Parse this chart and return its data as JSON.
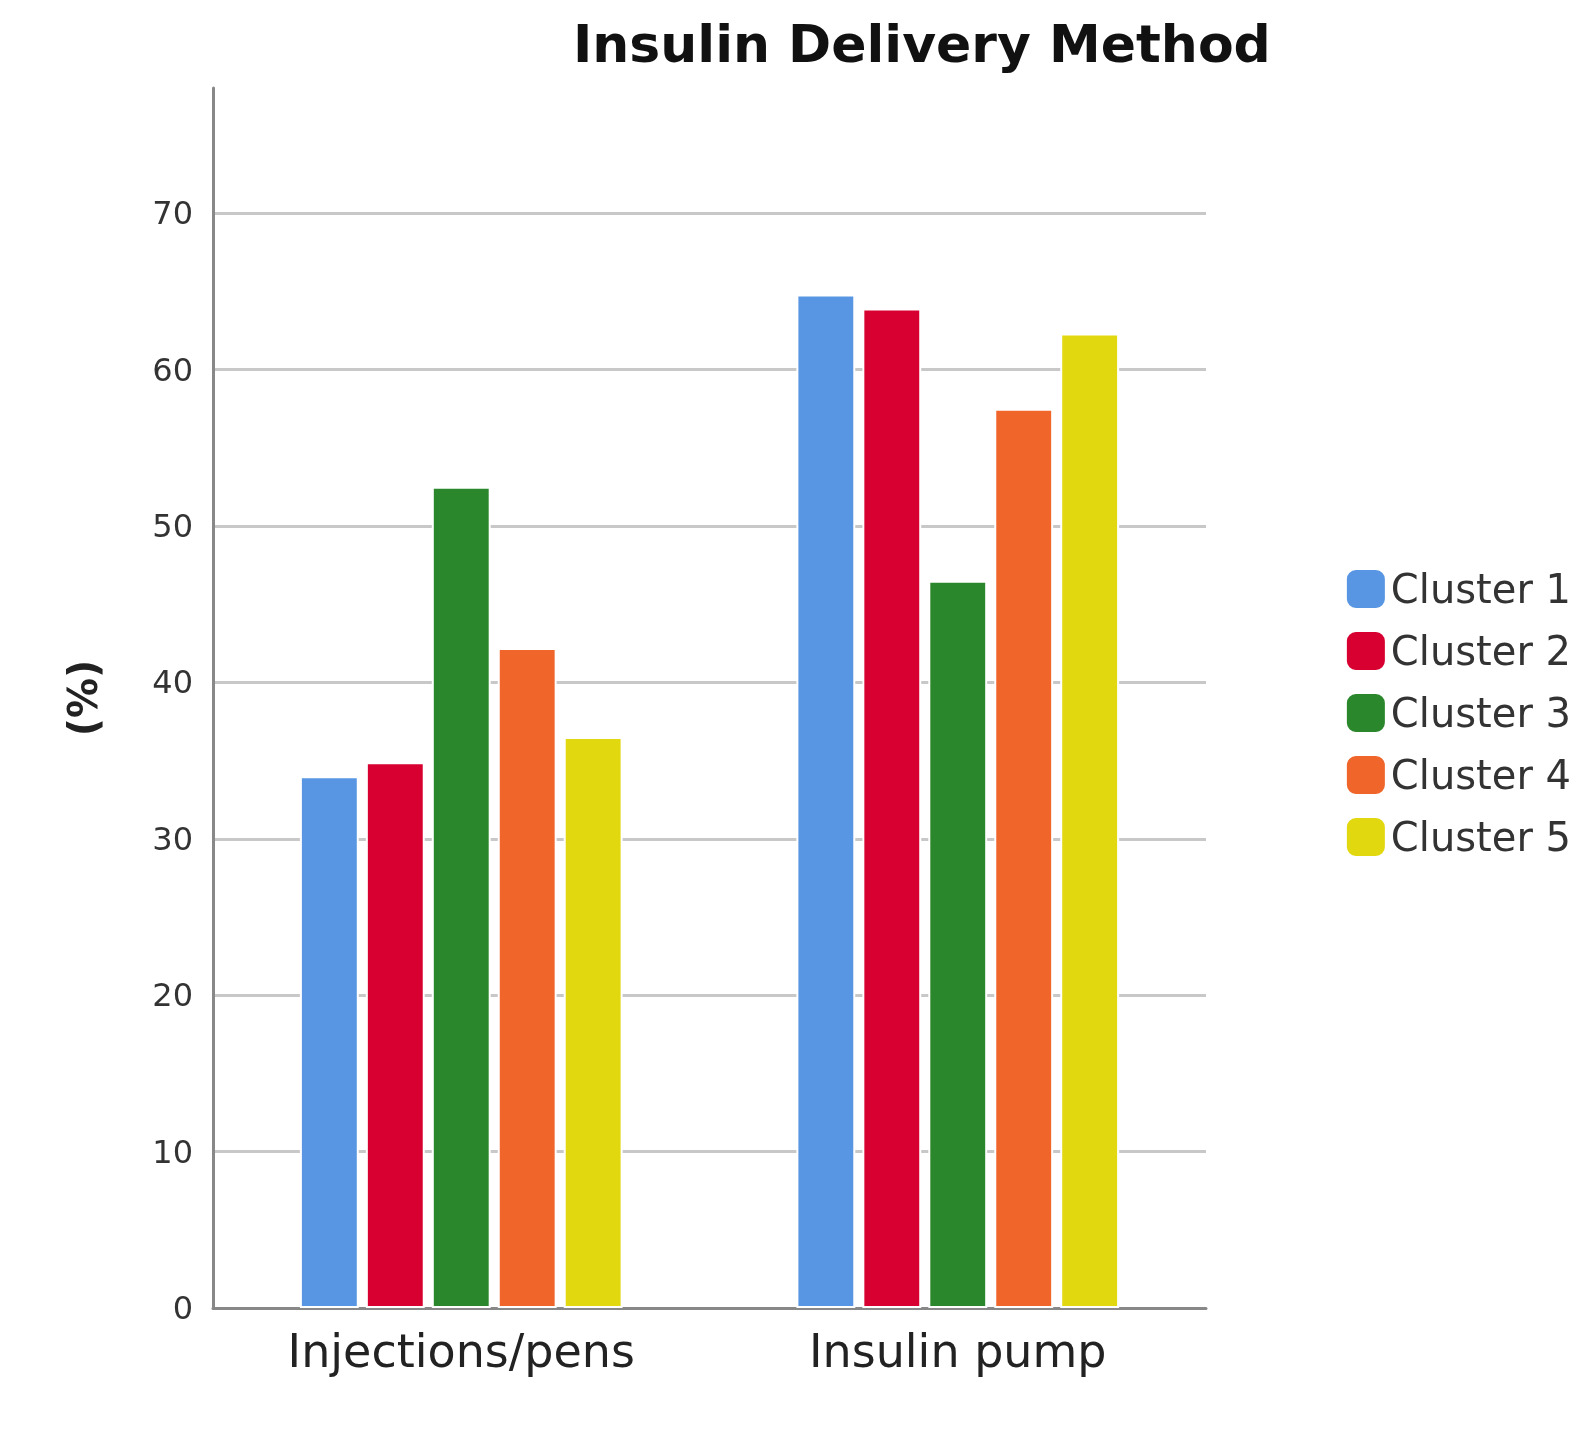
{
  "chart_data": {
    "type": "bar",
    "title": "Insulin Delivery Method",
    "ylabel": "(%)",
    "categories": [
      "Injections/pens",
      "Insulin pump"
    ],
    "series": [
      {
        "name": "Cluster 1",
        "color": "#5896e3",
        "values": [
          34.0,
          64.8
        ]
      },
      {
        "name": "Cluster 2",
        "color": "#d70030",
        "values": [
          34.9,
          63.9
        ]
      },
      {
        "name": "Cluster 3",
        "color": "#2a872b",
        "values": [
          52.5,
          46.5
        ]
      },
      {
        "name": "Cluster 4",
        "color": "#f0652a",
        "values": [
          42.2,
          57.5
        ]
      },
      {
        "name": "Cluster 5",
        "color": "#e2d810",
        "values": [
          36.5,
          62.3
        ]
      }
    ],
    "ylim": [
      0,
      78
    ],
    "yticks": [
      0,
      10,
      20,
      30,
      40,
      50,
      60,
      70
    ],
    "grid": "y",
    "legend": "right"
  }
}
